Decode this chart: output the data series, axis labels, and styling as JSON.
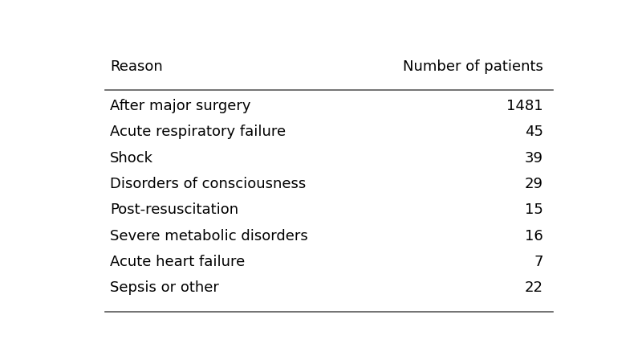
{
  "col_headers": [
    "Reason",
    "Number of patients"
  ],
  "rows": [
    [
      "After major surgery",
      "1481"
    ],
    [
      "Acute respiratory failure",
      "45"
    ],
    [
      "Shock",
      "39"
    ],
    [
      "Disorders of consciousness",
      "29"
    ],
    [
      "Post-resuscitation",
      "15"
    ],
    [
      "Severe metabolic disorders",
      "16"
    ],
    [
      "Acute heart failure",
      "7"
    ],
    [
      "Sepsis or other",
      "22"
    ]
  ],
  "background_color": "#ffffff",
  "text_color": "#000000",
  "line_color": "#5a5a5a",
  "header_fontsize": 13,
  "row_fontsize": 13,
  "fig_width": 8.0,
  "fig_height": 4.48,
  "dpi": 100
}
